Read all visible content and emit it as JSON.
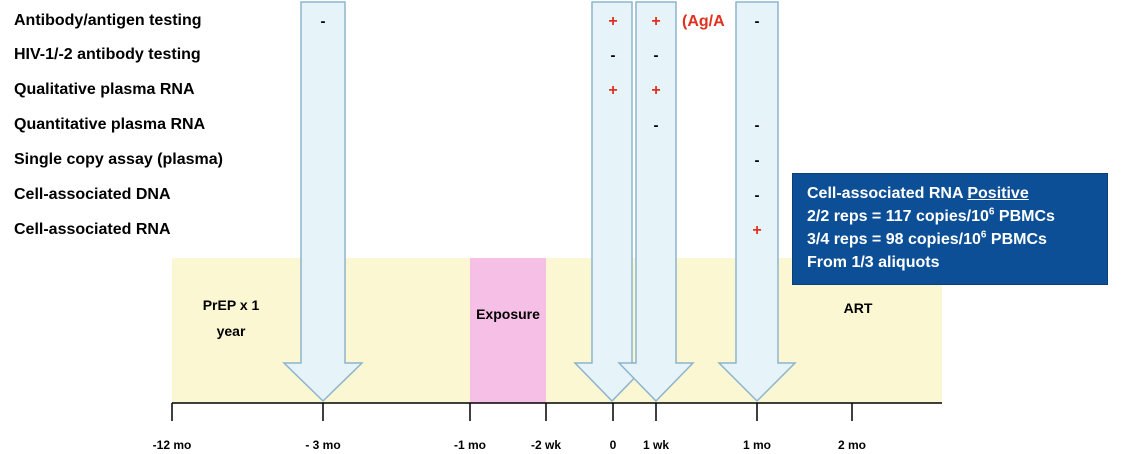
{
  "colors": {
    "prep_bg": "#fbf7d2",
    "exposure_bg": "#f6bfe6",
    "arrow_fill": "#e6f4fa",
    "arrow_stroke": "#8db4cd",
    "plus_color": "#e0301e",
    "agab_color": "#e0301e",
    "callout_bg": "#0d4f97",
    "text": "#000000"
  },
  "tests": [
    "Antibody/antigen testing",
    "HIV-1/-2 antibody testing",
    "Qualitative plasma RNA",
    "Quantitative plasma RNA",
    "Single copy assay (plasma)",
    "Cell-associated DNA",
    "Cell-associated RNA"
  ],
  "periods": [
    {
      "label": "PrEP x 1 year",
      "lines": [
        "PrEP x 1",
        "year"
      ]
    },
    {
      "label": "Exposure",
      "lines": [
        "Exposure"
      ]
    },
    {
      "label": "ART",
      "lines": [
        "ART"
      ]
    }
  ],
  "timeline_ticks": [
    "-12 mo",
    "- 3 mo",
    "-1 mo",
    "-2 wk",
    "0",
    "1 wk",
    "1 mo",
    "2 mo"
  ],
  "results": [
    {
      "time": "- 3 mo",
      "values": [
        "-",
        "",
        "",
        "",
        "",
        "",
        ""
      ]
    },
    {
      "time": "0",
      "values": [
        "+",
        "-",
        "+",
        "",
        "",
        "",
        ""
      ]
    },
    {
      "time": "1 wk",
      "values": [
        "+",
        "-",
        "+",
        "-",
        "",
        "",
        ""
      ]
    },
    {
      "time": "1 mo",
      "values": [
        "-",
        "",
        "",
        "-",
        "-",
        "-",
        "+"
      ]
    }
  ],
  "ag_ab_note": "(Ag/A",
  "callout": {
    "title": "Cell-associated RNA",
    "title_emphasis": "Positive",
    "line2_prefix": "2/2 reps = 117 copies/10",
    "line2_exp": "6",
    "line2_suffix": " PBMCs",
    "line3_prefix": "3/4 reps = 98 copies/10",
    "line3_exp": "6",
    "line3_suffix": " PBMCs",
    "line4": "From 1/3 aliquots"
  }
}
